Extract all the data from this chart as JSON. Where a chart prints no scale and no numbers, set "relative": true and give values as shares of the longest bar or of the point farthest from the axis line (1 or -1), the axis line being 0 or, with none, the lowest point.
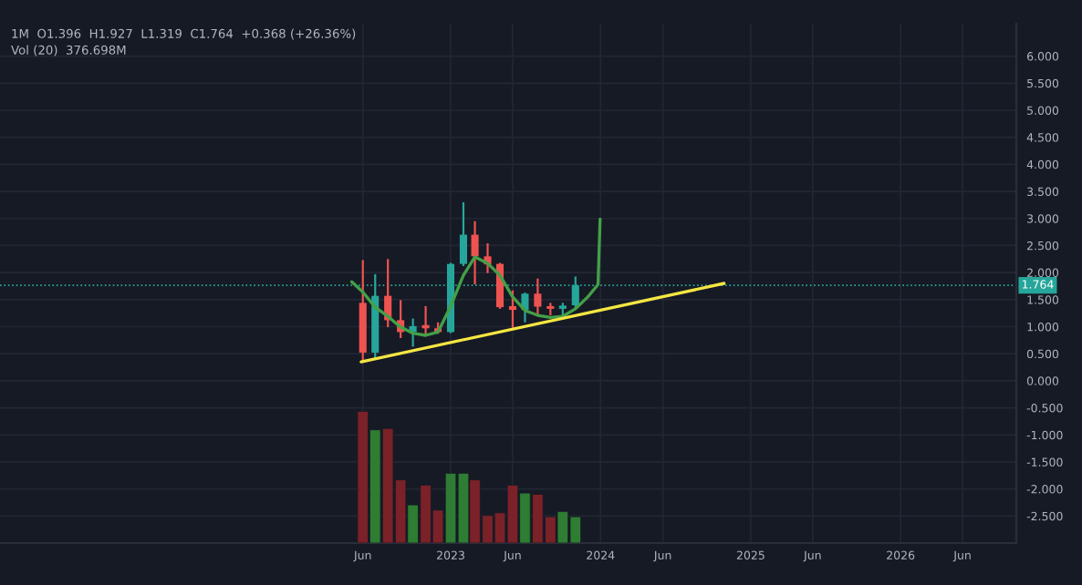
{
  "chart_data": [
    {
      "type": "candlestick",
      "x": [
        "2022-06",
        "2022-07",
        "2022-08",
        "2022-09",
        "2022-10",
        "2022-11",
        "2022-12",
        "2023-01",
        "2023-02",
        "2023-03",
        "2023-04",
        "2023-05",
        "2023-06",
        "2023-07",
        "2023-08",
        "2023-09",
        "2023-10",
        "2023-11"
      ],
      "ohlc": [
        [
          1.44,
          2.23,
          0.37,
          0.52
        ],
        [
          0.52,
          1.97,
          0.39,
          1.57
        ],
        [
          1.57,
          2.25,
          0.99,
          1.12
        ],
        [
          1.12,
          1.49,
          0.79,
          0.9
        ],
        [
          0.9,
          1.15,
          0.63,
          1.01
        ],
        [
          1.03,
          1.38,
          0.82,
          0.97
        ],
        [
          0.97,
          1.08,
          0.87,
          0.9
        ],
        [
          0.9,
          2.18,
          0.88,
          2.16
        ],
        [
          2.16,
          3.3,
          2.12,
          2.7
        ],
        [
          2.7,
          2.95,
          1.78,
          2.3
        ],
        [
          2.3,
          2.54,
          1.99,
          2.15
        ],
        [
          2.16,
          2.18,
          1.33,
          1.36
        ],
        [
          1.38,
          1.67,
          0.98,
          1.31
        ],
        [
          1.31,
          1.63,
          1.08,
          1.61
        ],
        [
          1.61,
          1.89,
          1.21,
          1.37
        ],
        [
          1.38,
          1.44,
          1.21,
          1.33
        ],
        [
          1.33,
          1.44,
          1.19,
          1.39
        ],
        [
          1.396,
          1.927,
          1.319,
          1.764
        ]
      ],
      "colors": [
        "#ef5350",
        "#26a69a",
        "#ef5350",
        "#ef5350",
        "#26a69a",
        "#ef5350",
        "#ef5350",
        "#26a69a",
        "#26a69a",
        "#ef5350",
        "#ef5350",
        "#ef5350",
        "#ef5350",
        "#26a69a",
        "#ef5350",
        "#ef5350",
        "#26a69a",
        "#26a69a"
      ],
      "series": [
        {
          "type": "line",
          "color": "#43a047",
          "x": [
            "2022-05-05",
            "2022-06-01",
            "2022-07-01",
            "2022-08-01",
            "2022-09-01",
            "2022-10-01",
            "2022-11-01",
            "2022-12-01",
            "2023-01-01",
            "2023-02-01",
            "2023-03-01",
            "2023-04-01",
            "2023-05-01",
            "2023-06-01",
            "2023-07-01",
            "2023-08-01",
            "2023-09-01",
            "2023-10-01",
            "2023-11-01",
            "2023-12-01",
            "2023-12-26",
            "2023-12-31"
          ],
          "values": [
            1.83,
            1.64,
            1.36,
            1.19,
            0.99,
            0.88,
            0.84,
            0.9,
            1.38,
            1.95,
            2.29,
            2.17,
            1.95,
            1.55,
            1.3,
            1.21,
            1.17,
            1.19,
            1.33,
            1.55,
            1.78,
            2.99
          ]
        },
        {
          "type": "line",
          "color": "#f5e642",
          "x": [
            "2022-05-28",
            "2024-10-28"
          ],
          "values": [
            0.35,
            1.8
          ]
        }
      ],
      "ref_lines": [
        {
          "axis": "y",
          "value": 1.764,
          "label": "1.764",
          "color": "#26a69a",
          "line_style": "dotted"
        }
      ],
      "annotations": [
        "1M  O1.396  H1.927  L1.319  C1.764  +0.368 (+26.36%)",
        "Vol (20)  376.698M"
      ],
      "xlim": [
        "2019-12-30",
        "2026-10-10"
      ],
      "xticks": [
        {
          "value": "2022-06",
          "label": "Jun"
        },
        {
          "value": "2023-01",
          "label": "2023"
        },
        {
          "value": "2023-06",
          "label": "Jun"
        },
        {
          "value": "2024-01",
          "label": "2024"
        },
        {
          "value": "2024-06",
          "label": "Jun"
        },
        {
          "value": "2025-01",
          "label": "2025"
        },
        {
          "value": "2025-06",
          "label": "Jun"
        },
        {
          "value": "2026-01",
          "label": "2026"
        },
        {
          "value": "2026-06",
          "label": "Jun"
        }
      ],
      "ylim": [
        -3.0,
        6.6
      ],
      "yticks": [
        {
          "value": -2.5,
          "label": "-2.500"
        },
        {
          "value": -2.0,
          "label": "-2.000"
        },
        {
          "value": -1.5,
          "label": "-1.500"
        },
        {
          "value": -1.0,
          "label": "-1.000"
        },
        {
          "value": -0.5,
          "label": "-0.500"
        },
        {
          "value": 0,
          "label": "0.000"
        },
        {
          "value": 0.5,
          "label": "0.500"
        },
        {
          "value": 1.0,
          "label": "1.000"
        },
        {
          "value": 1.5,
          "label": "1.500"
        },
        {
          "value": 2.0,
          "label": "2.000"
        },
        {
          "value": 2.5,
          "label": "2.500"
        },
        {
          "value": 3.0,
          "label": "3.000"
        },
        {
          "value": 3.5,
          "label": "3.500"
        },
        {
          "value": 4.0,
          "label": "4.000"
        },
        {
          "value": 4.5,
          "label": "4.500"
        },
        {
          "value": 5.0,
          "label": "5.000"
        },
        {
          "value": 5.5,
          "label": "5.500"
        },
        {
          "value": 6.0,
          "label": "6.000"
        }
      ],
      "grid": true,
      "marker": "none",
      "line_style": "solid"
    },
    {
      "type": "bar",
      "relative": true,
      "tick_labels": false,
      "x": [
        "2022-06",
        "2022-07",
        "2022-08",
        "2022-09",
        "2022-10",
        "2022-11",
        "2022-12",
        "2023-01",
        "2023-02",
        "2023-03",
        "2023-04",
        "2023-05",
        "2023-06",
        "2023-07",
        "2023-08",
        "2023-09",
        "2023-10",
        "2023-11"
      ],
      "values": [
        1,
        0.86,
        0.87,
        0.48,
        0.29,
        0.44,
        0.25,
        0.53,
        0.53,
        0.48,
        0.21,
        0.23,
        0.44,
        0.38,
        0.37,
        0.2,
        0.24,
        0.2
      ],
      "colors": [
        "#7b2128",
        "#2e7d32",
        "#7b2128",
        "#7b2128",
        "#2e7d32",
        "#7b2128",
        "#7b2128",
        "#2e7d32",
        "#2e7d32",
        "#7b2128",
        "#7b2128",
        "#7b2128",
        "#7b2128",
        "#2e7d32",
        "#7b2128",
        "#7b2128",
        "#2e7d32",
        "#2e7d32"
      ],
      "xlim": [
        "2019-12-30",
        "2026-10-10"
      ]
    }
  ]
}
